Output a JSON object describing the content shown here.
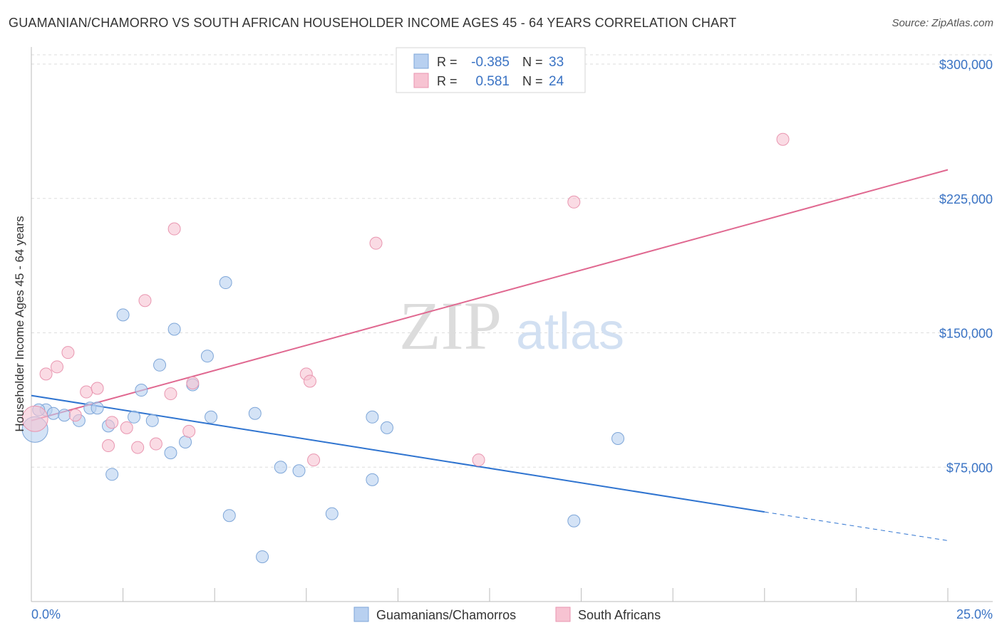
{
  "title": "GUAMANIAN/CHAMORRO VS SOUTH AFRICAN HOUSEHOLDER INCOME AGES 45 - 64 YEARS CORRELATION CHART",
  "source": "Source: ZipAtlas.com",
  "watermark": {
    "zip": "ZIP",
    "atlas": "atlas"
  },
  "colors": {
    "blue_fill": "#b8d0f0",
    "blue_stroke": "#7ea6d8",
    "blue_line": "#2f74d0",
    "pink_fill": "#f7c3d2",
    "pink_stroke": "#e996b0",
    "pink_line": "#e06890",
    "accent_text": "#3a73c4",
    "grid": "#dddddd",
    "axis": "#bbbbbb"
  },
  "legend_stats": [
    {
      "r_label": "R =",
      "r_value": "-0.385",
      "n_label": "N =",
      "n_value": "33"
    },
    {
      "r_label": "R =",
      "r_value": "0.581",
      "n_label": "N =",
      "n_value": "24"
    }
  ],
  "chart_data": {
    "type": "scatter",
    "title": "GUAMANIAN/CHAMORRO VS SOUTH AFRICAN HOUSEHOLDER INCOME AGES 45 - 64 YEARS CORRELATION CHART",
    "xlabel": "",
    "ylabel": "Householder Income Ages 45 - 64 years",
    "xlim": [
      0,
      25
    ],
    "ylim": [
      0,
      300000
    ],
    "x_tick_labels": [
      "0.0%",
      "25.0%"
    ],
    "y_ticks": [
      75000,
      150000,
      225000,
      300000
    ],
    "y_tick_labels": [
      "$75,000",
      "$150,000",
      "$225,000",
      "$300,000"
    ],
    "grid": true,
    "legend_position": "bottom",
    "series": [
      {
        "name": "Guamanians/Chamorros",
        "points": [
          [
            0.1,
            96000
          ],
          [
            0.4,
            107000
          ],
          [
            0.6,
            105000
          ],
          [
            0.9,
            104000
          ],
          [
            1.3,
            101000
          ],
          [
            1.6,
            108000
          ],
          [
            1.8,
            108000
          ],
          [
            2.1,
            98000
          ],
          [
            2.2,
            71000
          ],
          [
            2.5,
            160000
          ],
          [
            2.8,
            103000
          ],
          [
            3.0,
            118000
          ],
          [
            3.3,
            101000
          ],
          [
            3.5,
            132000
          ],
          [
            3.8,
            83000
          ],
          [
            3.9,
            152000
          ],
          [
            4.2,
            89000
          ],
          [
            4.4,
            121000
          ],
          [
            4.8,
            137000
          ],
          [
            4.9,
            103000
          ],
          [
            5.3,
            178000
          ],
          [
            5.4,
            48000
          ],
          [
            6.1,
            105000
          ],
          [
            6.3,
            25000
          ],
          [
            6.8,
            75000
          ],
          [
            7.3,
            73000
          ],
          [
            8.2,
            49000
          ],
          [
            9.3,
            103000
          ],
          [
            9.3,
            68000
          ],
          [
            9.7,
            97000
          ],
          [
            14.8,
            45000
          ],
          [
            16.0,
            91000
          ],
          [
            0.2,
            107000
          ]
        ],
        "trend": {
          "x0": 0,
          "y0": 115000,
          "x1": 20,
          "y1": 50000,
          "dash_to_x": 25,
          "dash_to_y": 34000
        }
      },
      {
        "name": "South Africans",
        "points": [
          [
            0.1,
            102000
          ],
          [
            0.4,
            127000
          ],
          [
            0.7,
            131000
          ],
          [
            1.0,
            139000
          ],
          [
            1.2,
            104000
          ],
          [
            1.5,
            117000
          ],
          [
            1.8,
            119000
          ],
          [
            2.1,
            87000
          ],
          [
            2.2,
            100000
          ],
          [
            2.6,
            97000
          ],
          [
            2.9,
            86000
          ],
          [
            3.1,
            168000
          ],
          [
            3.4,
            88000
          ],
          [
            3.8,
            116000
          ],
          [
            3.9,
            208000
          ],
          [
            4.3,
            95000
          ],
          [
            4.4,
            122000
          ],
          [
            7.5,
            127000
          ],
          [
            7.6,
            123000
          ],
          [
            7.7,
            79000
          ],
          [
            9.4,
            200000
          ],
          [
            12.2,
            79000
          ],
          [
            14.8,
            223000
          ],
          [
            20.5,
            258000
          ]
        ],
        "trend": {
          "x0": 0,
          "y0": 101000,
          "x1": 25,
          "y1": 241000
        }
      }
    ]
  }
}
